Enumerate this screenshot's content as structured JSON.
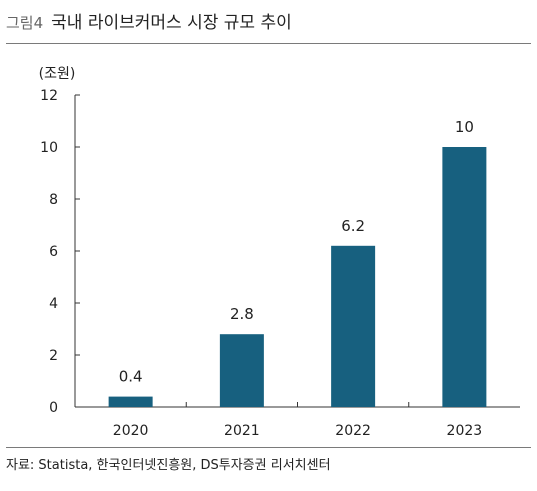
{
  "figure": {
    "label": "그림4",
    "title": "국내 라이브커머스 시장 규모 추이",
    "source": "자료: Statista,  한국인터넷진흥원, DS투자증권 리서치센터"
  },
  "chart_data": {
    "type": "bar",
    "title": "국내 라이브커머스 시장 규모 추이",
    "unit_label": "(조원)",
    "categories": [
      "2020",
      "2021",
      "2022",
      "2023"
    ],
    "values": [
      0.4,
      2.8,
      6.2,
      10
    ],
    "data_labels": [
      "0.4",
      "2.8",
      "6.2",
      "10"
    ],
    "ylim": [
      0,
      12
    ],
    "yticks": [
      "0",
      "2",
      "4",
      "6",
      "8",
      "10",
      "12"
    ],
    "xlabel": "",
    "ylabel": "",
    "grid": false,
    "legend": "none",
    "bar_color": "#17607f",
    "axis_color": "#333333"
  }
}
